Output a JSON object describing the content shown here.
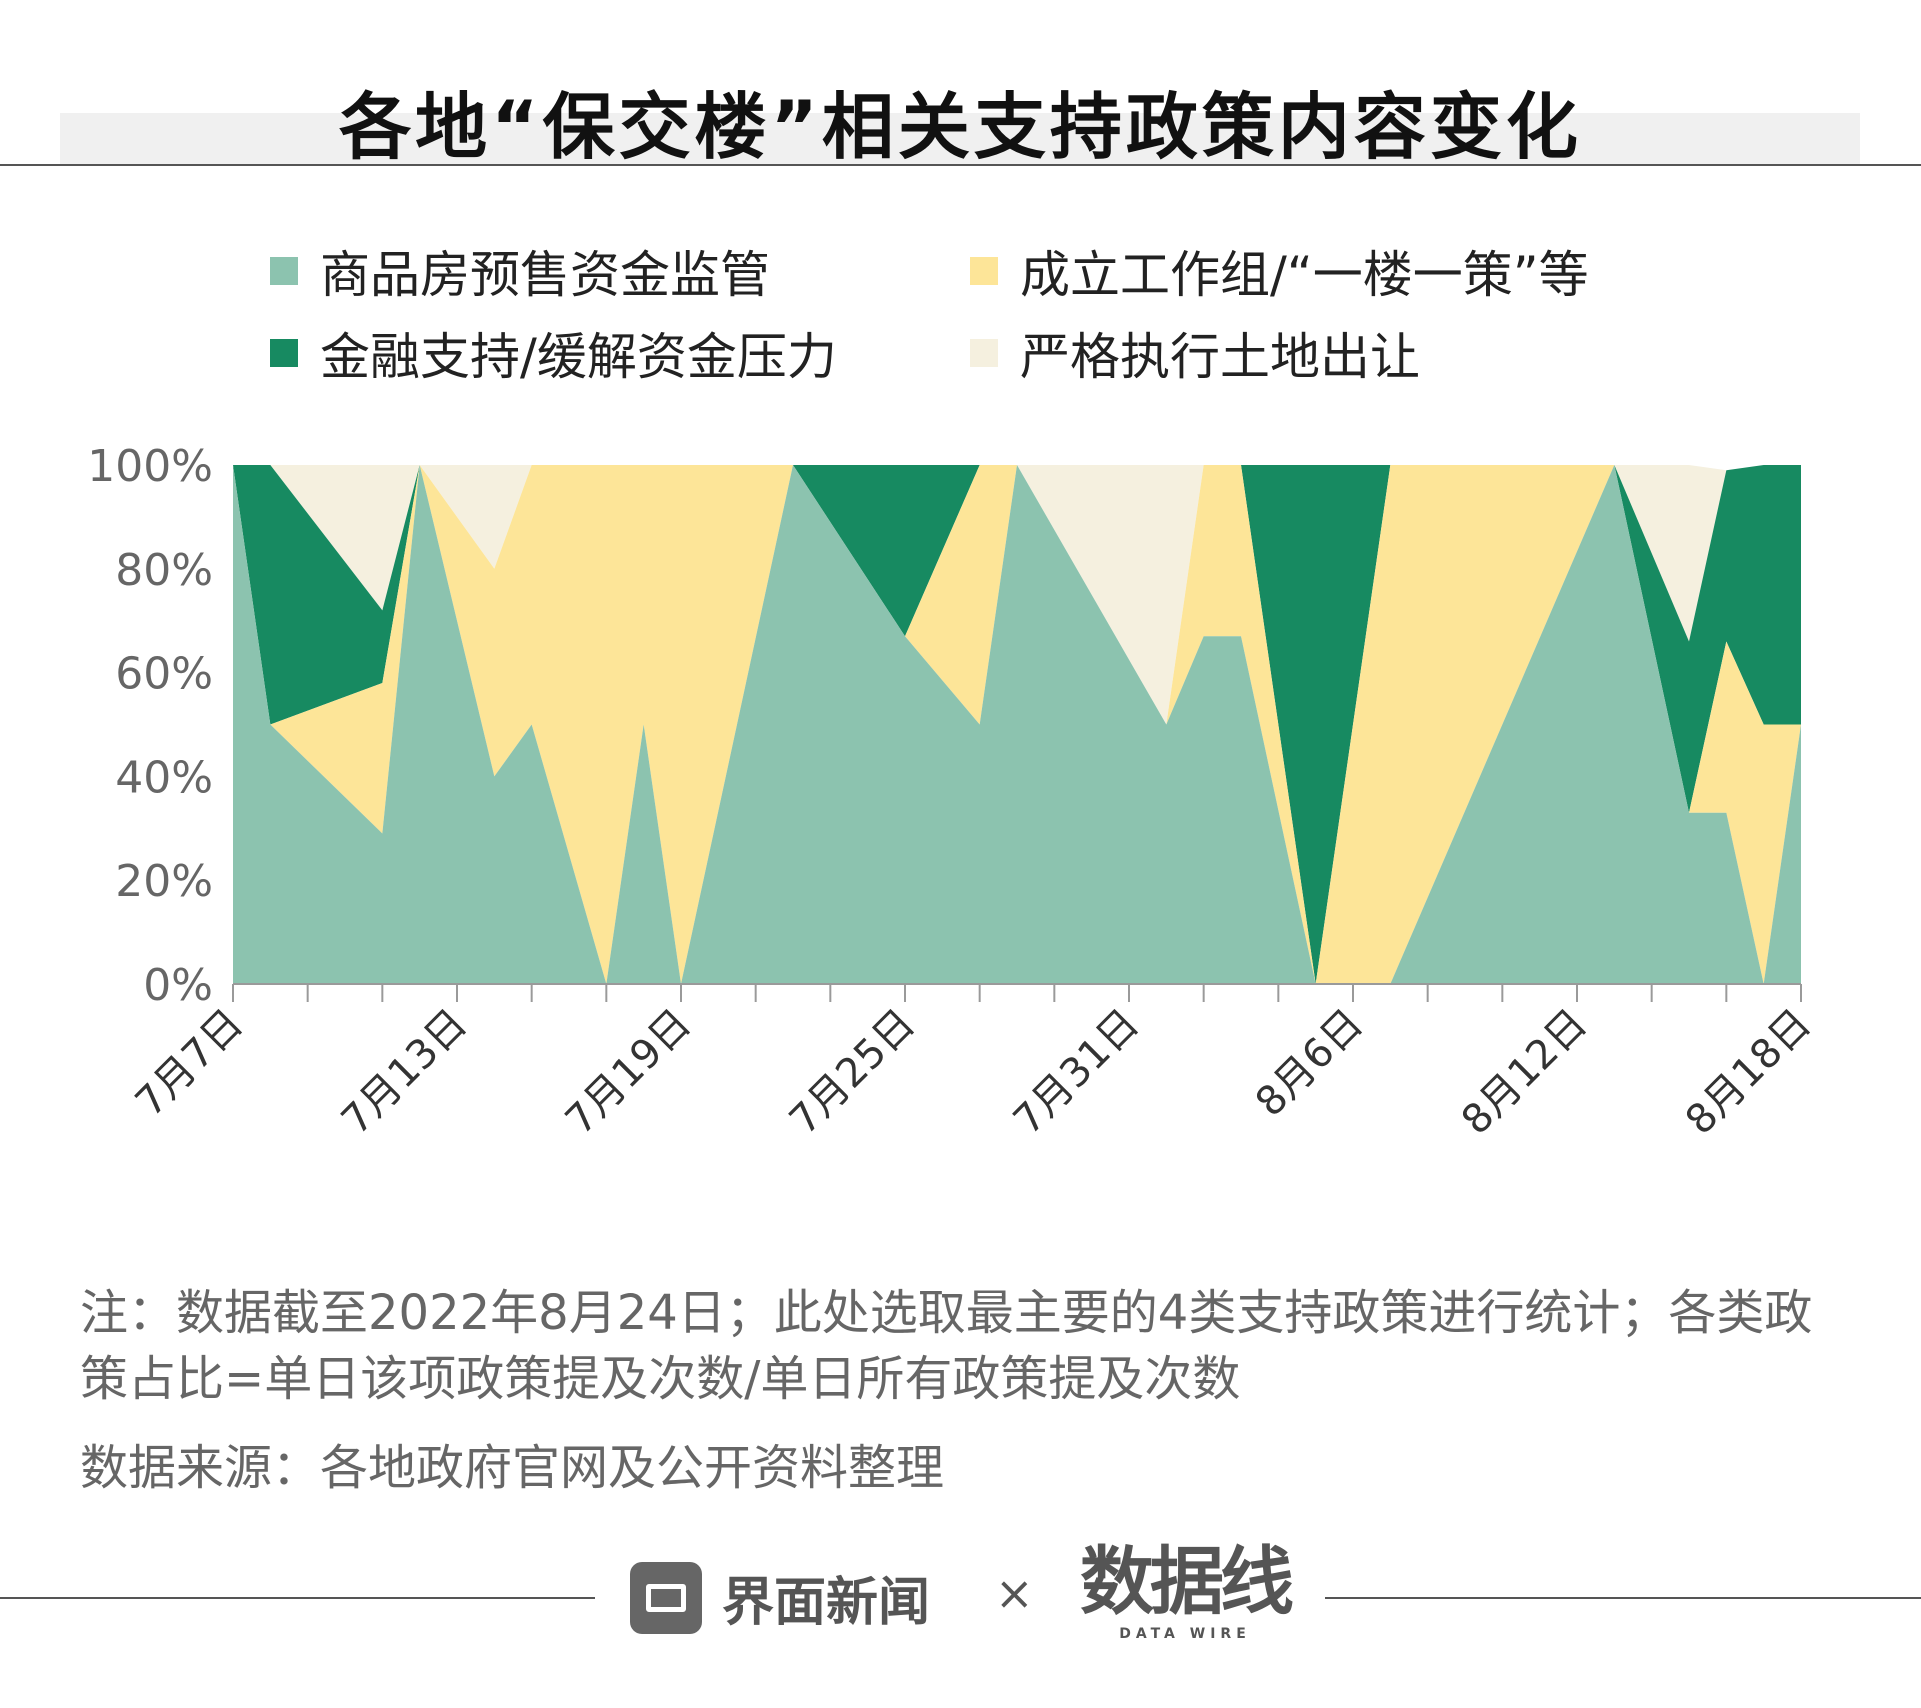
{
  "title": "各地“保交楼”相关支持政策内容变化",
  "legend": [
    {
      "label": "商品房预售资金监管",
      "color": "#8cc3af"
    },
    {
      "label": "成立工作组/“一楼一策”等",
      "color": "#fde598"
    },
    {
      "label": "金融支持/缓解资金压力",
      "color": "#178a61"
    },
    {
      "label": "严格执行土地出让",
      "color": "#f5f0df"
    }
  ],
  "chart_data": {
    "type": "area",
    "stacked": true,
    "normalized": true,
    "x": [
      "7月7日",
      "7月8日",
      "7月9日",
      "7月10日",
      "7月11日",
      "7月12日",
      "7月13日",
      "7月14日",
      "7月15日",
      "7月16日",
      "7月17日",
      "7月18日",
      "7月19日",
      "7月20日",
      "7月21日",
      "7月22日",
      "7月23日",
      "7月24日",
      "7月25日",
      "7月26日",
      "7月27日",
      "7月28日",
      "7月29日",
      "7月30日",
      "7月31日",
      "8月1日",
      "8月2日",
      "8月3日",
      "8月4日",
      "8月5日",
      "8月6日",
      "8月7日",
      "8月8日",
      "8月9日",
      "8月10日",
      "8月11日",
      "8月12日",
      "8月13日",
      "8月14日",
      "8月15日",
      "8月16日",
      "8月17日",
      "8月18日"
    ],
    "x_tick_labels": [
      "7月7日",
      "7月13日",
      "7月19日",
      "7月25日",
      "7月31日",
      "8月6日",
      "8月12日",
      "8月18日"
    ],
    "ylim": [
      0,
      100
    ],
    "y_tick_labels": [
      "0%",
      "20%",
      "40%",
      "60%",
      "80%",
      "100%"
    ],
    "series": [
      {
        "name": "商品房预售资金监管",
        "values": [
          100,
          50,
          null,
          null,
          29,
          100,
          null,
          40,
          50,
          null,
          0,
          50,
          0,
          null,
          null,
          100,
          null,
          null,
          67,
          null,
          50,
          100,
          null,
          null,
          null,
          50,
          67,
          67,
          null,
          0,
          null,
          0,
          null,
          null,
          null,
          null,
          null,
          100,
          null,
          33,
          33,
          0,
          50
        ]
      },
      {
        "name": "成立工作组/“一楼一策”等",
        "values": [
          0,
          0,
          null,
          null,
          29,
          0,
          null,
          40,
          50,
          null,
          100,
          50,
          100,
          null,
          null,
          0,
          null,
          null,
          0,
          null,
          50,
          0,
          null,
          null,
          null,
          0,
          33,
          33,
          null,
          0,
          null,
          100,
          null,
          null,
          null,
          null,
          null,
          0,
          null,
          0,
          33,
          50,
          0
        ]
      },
      {
        "name": "金融支持/缓解资金压力",
        "values": [
          0,
          50,
          null,
          null,
          14,
          0,
          null,
          0,
          0,
          null,
          0,
          0,
          0,
          null,
          null,
          0,
          null,
          null,
          33,
          null,
          0,
          0,
          null,
          null,
          null,
          0,
          0,
          0,
          null,
          100,
          null,
          0,
          null,
          null,
          null,
          null,
          null,
          0,
          null,
          33,
          33,
          50,
          50
        ]
      },
      {
        "name": "严格执行土地出让",
        "values": [
          0,
          0,
          null,
          null,
          28,
          0,
          null,
          20,
          0,
          null,
          0,
          0,
          0,
          null,
          null,
          0,
          null,
          null,
          0,
          null,
          0,
          0,
          null,
          null,
          null,
          50,
          0,
          0,
          null,
          0,
          null,
          0,
          null,
          null,
          null,
          null,
          null,
          0,
          null,
          34,
          0,
          0,
          0
        ]
      }
    ]
  },
  "notes": "注：数据截至2022年8月24日；此处选取最主要的4类支持政策进行统计；各类政策占比=单日该项政策提及次数/单日所有政策提及次数",
  "source": "数据来源：各地政府官网及公开资料整理",
  "footer": {
    "brand": "界面新闻",
    "times": "×",
    "partner": "数据线",
    "partner_sub": "DATA WIRE"
  }
}
